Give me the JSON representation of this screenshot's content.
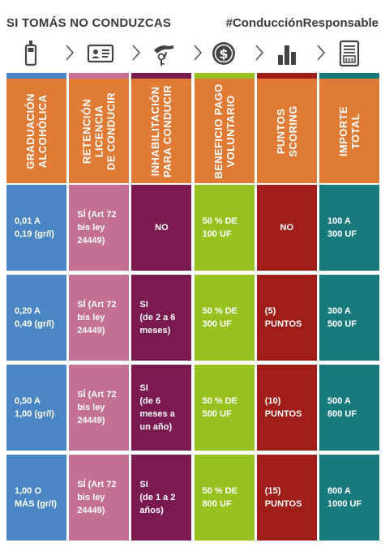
{
  "header": {
    "title": "SI TOMÁS NO CONDUZCAS",
    "hashtag": "#ConducciónResponsable"
  },
  "icons": [
    "breathalyzer-icon",
    "id-card-icon",
    "hand-keys-icon",
    "coin-icon",
    "bar-chart-icon",
    "invoice-icon"
  ],
  "colors": {
    "header_orange": "#e07b36",
    "blue": "#4a86c4",
    "pink": "#c46f94",
    "purple": "#7b1a50",
    "green": "#96c11f",
    "red": "#a01e1a",
    "teal": "#197a7d"
  },
  "columns": [
    {
      "label": "GRADUACIÓN\nALCOHÓLICA",
      "color": "#4a86c4",
      "stripe": "#4a86c4"
    },
    {
      "label": "RETENCIÓN\nLICENCIA\nDE CONDUCIR",
      "color": "#c46f94",
      "stripe": "#c46f94"
    },
    {
      "label": "INHABILITACIÓN\nPARA CONDUCIR",
      "color": "#7b1a50",
      "stripe": "#7b1a50"
    },
    {
      "label": "BENEFICIO PAGO\nVOLUNTARIO",
      "color": "#96c11f",
      "stripe": "#96c11f"
    },
    {
      "label": "PUNTOS\nSCORING",
      "color": "#a01e1a",
      "stripe": "#a01e1a"
    },
    {
      "label": "IMPORTE\nTOTAL",
      "color": "#197a7d",
      "stripe": "#197a7d"
    }
  ],
  "rows": [
    [
      "0,01 A\n0,19 (gr/l)",
      "SÍ (Art 72\nbis ley\n24449)",
      "NO",
      "50 % DE\n100 UF",
      "NO",
      "100 A\n300 UF"
    ],
    [
      "0,20 A\n0,49 (gr/l)",
      "SÍ (Art 72\nbis ley\n24449)",
      "SI\n(de 2 a 6\nmeses)",
      "50 % DE\n300 UF",
      "(5)\nPUNTOS",
      "300 A\n500 UF"
    ],
    [
      "0,50 A\n1,00 (gr/l)",
      "SÍ (Art 72\nbis ley\n24449)",
      "SI\n(de 6\nmeses a\nun año)",
      "50 % DE\n500 UF",
      "(10)\nPUNTOS",
      "500 A\n800 UF"
    ],
    [
      "1,00 O\nMÁS (gr/l)",
      "SÍ (Art 72\nbis ley\n24449)",
      "SI\n(de 1 a 2\naños)",
      "50 % DE\n800 UF",
      "(15)\nPUNTOS",
      "800 A\n1000 UF"
    ]
  ]
}
